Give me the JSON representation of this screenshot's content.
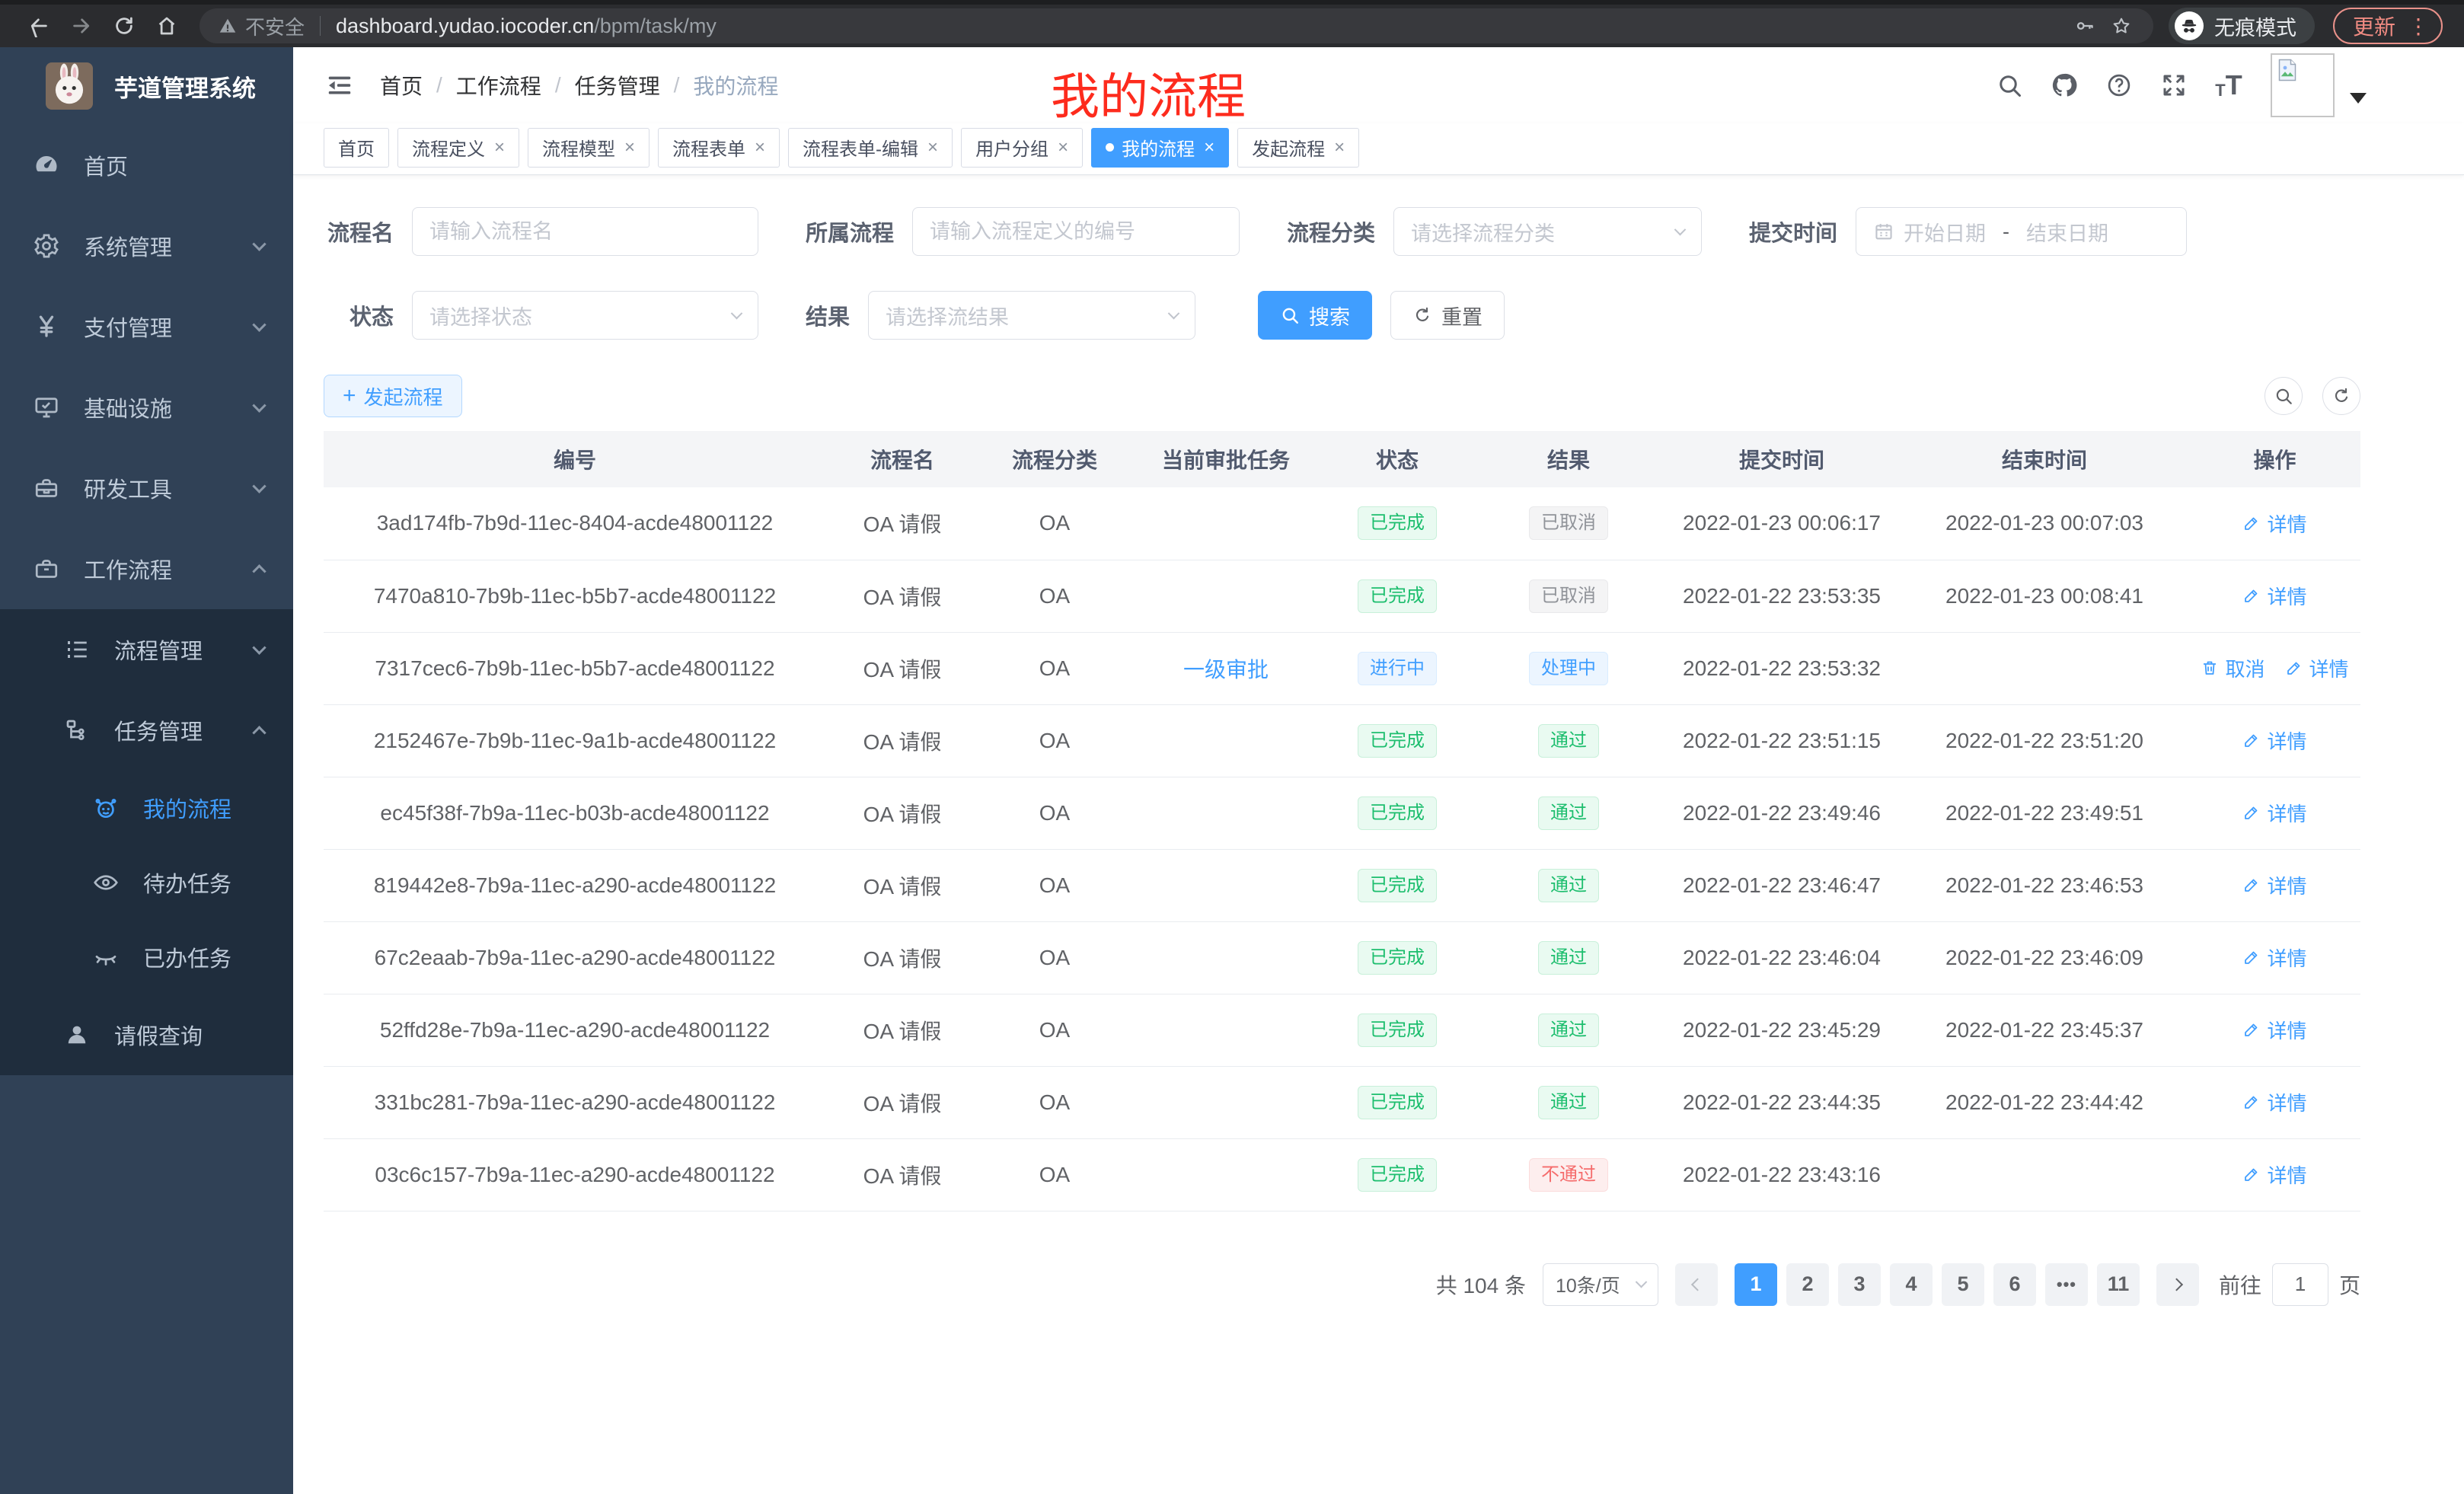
{
  "colors": {
    "accent": "#409eff",
    "success-green": "#1dbe6e",
    "danger-red": "#f56c6c",
    "info-gray": "#909399",
    "annotation-red": "#fd2b1d"
  },
  "browser": {
    "security_label": "不安全",
    "url_host": "dashboard.yudao.iocoder.cn",
    "url_path": "/bpm/task/my",
    "incognito_label": "无痕模式",
    "update_label": "更新"
  },
  "sidebar": {
    "app_title": "芋道管理系统",
    "items": [
      {
        "label": "首页",
        "icon": "dashboard-icon",
        "level": 1
      },
      {
        "label": "系统管理",
        "icon": "gear-icon",
        "level": 1,
        "chevron": "down"
      },
      {
        "label": "支付管理",
        "icon": "yen-icon",
        "level": 1,
        "chevron": "down"
      },
      {
        "label": "基础设施",
        "icon": "monitor-icon",
        "level": 1,
        "chevron": "down"
      },
      {
        "label": "研发工具",
        "icon": "toolbox-icon",
        "level": 1,
        "chevron": "down"
      },
      {
        "label": "工作流程",
        "icon": "briefcase-icon",
        "level": 1,
        "chevron": "up"
      },
      {
        "label": "流程管理",
        "icon": "list-icon",
        "level": 2,
        "chevron": "down"
      },
      {
        "label": "任务管理",
        "icon": "tree-icon",
        "level": 2,
        "chevron": "up"
      },
      {
        "label": "我的流程",
        "icon": "robot-icon",
        "level": 3,
        "active": true
      },
      {
        "label": "待办任务",
        "icon": "eye-icon",
        "level": 3
      },
      {
        "label": "已办任务",
        "icon": "eye-closed-icon",
        "level": 3
      },
      {
        "label": "请假查询",
        "icon": "user-icon",
        "level": 2
      }
    ]
  },
  "breadcrumb": {
    "items": [
      "首页",
      "工作流程",
      "任务管理",
      "我的流程"
    ]
  },
  "annotation": {
    "text": "我的流程"
  },
  "tabs": {
    "items": [
      {
        "label": "首页",
        "closable": false
      },
      {
        "label": "流程定义",
        "closable": true
      },
      {
        "label": "流程模型",
        "closable": true
      },
      {
        "label": "流程表单",
        "closable": true
      },
      {
        "label": "流程表单-编辑",
        "closable": true
      },
      {
        "label": "用户分组",
        "closable": true
      },
      {
        "label": "我的流程",
        "closable": true,
        "active": true
      },
      {
        "label": "发起流程",
        "closable": true
      }
    ]
  },
  "filters": {
    "name": {
      "label": "流程名",
      "placeholder": "请输入流程名"
    },
    "process": {
      "label": "所属流程",
      "placeholder": "请输入流程定义的编号"
    },
    "category": {
      "label": "流程分类",
      "placeholder": "请选择流程分类"
    },
    "submit_time": {
      "label": "提交时间",
      "start_placeholder": "开始日期",
      "separator": "-",
      "end_placeholder": "结束日期"
    },
    "status": {
      "label": "状态",
      "placeholder": "请选择状态"
    },
    "result": {
      "label": "结果",
      "placeholder": "请选择流结果"
    },
    "search_label": "搜索",
    "reset_label": "重置"
  },
  "toolbar": {
    "create_label": "发起流程"
  },
  "table": {
    "columns": [
      "编号",
      "流程名",
      "流程分类",
      "当前审批任务",
      "状态",
      "结果",
      "提交时间",
      "结束时间",
      "操作"
    ],
    "action_detail": "详情",
    "action_cancel": "取消",
    "rows": [
      {
        "id": "3ad174fb-7b9d-11ec-8404-acde48001122",
        "name": "OA 请假",
        "category": "OA",
        "task": "",
        "status": {
          "text": "已完成",
          "type": "success"
        },
        "result": {
          "text": "已取消",
          "type": "info"
        },
        "submit": "2022-01-23 00:06:17",
        "end": "2022-01-23 00:07:03",
        "cancelable": false
      },
      {
        "id": "7470a810-7b9b-11ec-b5b7-acde48001122",
        "name": "OA 请假",
        "category": "OA",
        "task": "",
        "status": {
          "text": "已完成",
          "type": "success"
        },
        "result": {
          "text": "已取消",
          "type": "info"
        },
        "submit": "2022-01-22 23:53:35",
        "end": "2022-01-23 00:08:41",
        "cancelable": false
      },
      {
        "id": "7317cec6-7b9b-11ec-b5b7-acde48001122",
        "name": "OA 请假",
        "category": "OA",
        "task": "一级审批",
        "status": {
          "text": "进行中",
          "type": "primary"
        },
        "result": {
          "text": "处理中",
          "type": "primary"
        },
        "submit": "2022-01-22 23:53:32",
        "end": "",
        "cancelable": true
      },
      {
        "id": "2152467e-7b9b-11ec-9a1b-acde48001122",
        "name": "OA 请假",
        "category": "OA",
        "task": "",
        "status": {
          "text": "已完成",
          "type": "success"
        },
        "result": {
          "text": "通过",
          "type": "success"
        },
        "submit": "2022-01-22 23:51:15",
        "end": "2022-01-22 23:51:20",
        "cancelable": false
      },
      {
        "id": "ec45f38f-7b9a-11ec-b03b-acde48001122",
        "name": "OA 请假",
        "category": "OA",
        "task": "",
        "status": {
          "text": "已完成",
          "type": "success"
        },
        "result": {
          "text": "通过",
          "type": "success"
        },
        "submit": "2022-01-22 23:49:46",
        "end": "2022-01-22 23:49:51",
        "cancelable": false
      },
      {
        "id": "819442e8-7b9a-11ec-a290-acde48001122",
        "name": "OA 请假",
        "category": "OA",
        "task": "",
        "status": {
          "text": "已完成",
          "type": "success"
        },
        "result": {
          "text": "通过",
          "type": "success"
        },
        "submit": "2022-01-22 23:46:47",
        "end": "2022-01-22 23:46:53",
        "cancelable": false
      },
      {
        "id": "67c2eaab-7b9a-11ec-a290-acde48001122",
        "name": "OA 请假",
        "category": "OA",
        "task": "",
        "status": {
          "text": "已完成",
          "type": "success"
        },
        "result": {
          "text": "通过",
          "type": "success"
        },
        "submit": "2022-01-22 23:46:04",
        "end": "2022-01-22 23:46:09",
        "cancelable": false
      },
      {
        "id": "52ffd28e-7b9a-11ec-a290-acde48001122",
        "name": "OA 请假",
        "category": "OA",
        "task": "",
        "status": {
          "text": "已完成",
          "type": "success"
        },
        "result": {
          "text": "通过",
          "type": "success"
        },
        "submit": "2022-01-22 23:45:29",
        "end": "2022-01-22 23:45:37",
        "cancelable": false
      },
      {
        "id": "331bc281-7b9a-11ec-a290-acde48001122",
        "name": "OA 请假",
        "category": "OA",
        "task": "",
        "status": {
          "text": "已完成",
          "type": "success"
        },
        "result": {
          "text": "通过",
          "type": "success"
        },
        "submit": "2022-01-22 23:44:35",
        "end": "2022-01-22 23:44:42",
        "cancelable": false
      },
      {
        "id": "03c6c157-7b9a-11ec-a290-acde48001122",
        "name": "OA 请假",
        "category": "OA",
        "task": "",
        "status": {
          "text": "已完成",
          "type": "success"
        },
        "result": {
          "text": "不通过",
          "type": "danger"
        },
        "submit": "2022-01-22 23:43:16",
        "end": "",
        "cancelable": false
      }
    ]
  },
  "pagination": {
    "total": "共 104 条",
    "page_size": "10条/页",
    "pages": [
      "1",
      "2",
      "3",
      "4",
      "5",
      "6",
      "•••",
      "11"
    ],
    "active": "1",
    "goto_label": "前往",
    "goto_value": "1",
    "unit_label": "页"
  }
}
